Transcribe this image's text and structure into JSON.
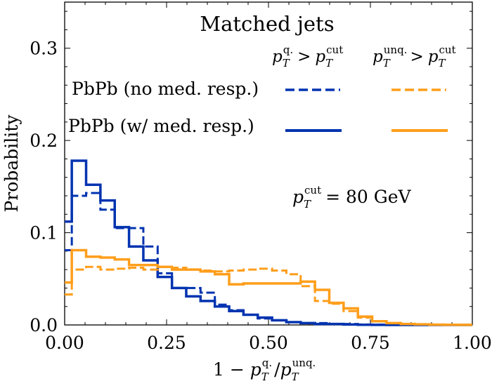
{
  "chart_data": {
    "type": "line",
    "style": "step-histogram",
    "title": "Matched jets",
    "xlabel": "1 − p_T^q. / p_T^unq.",
    "ylabel": "Probability",
    "xlim": [
      0.0,
      1.0
    ],
    "ylim": [
      0.0,
      0.35
    ],
    "x_ticks": [
      0.0,
      0.25,
      0.5,
      0.75,
      1.0
    ],
    "x_tick_labels": [
      "0.00",
      "0.25",
      "0.50",
      "0.75",
      "1.00"
    ],
    "y_ticks": [
      0.0,
      0.1,
      0.2,
      0.3
    ],
    "y_tick_labels": [
      "0.0",
      "0.1",
      "0.2",
      "0.3"
    ],
    "annotation": "p_T^cut = 80 GeV",
    "legend": {
      "position": "top-right",
      "column_headers": [
        "p_T^q. > p_T^cut",
        "p_T^unq. > p_T^cut"
      ],
      "row_labels": [
        "PbPb (no med. resp.)",
        "PbPb (w/ med. resp.)"
      ]
    },
    "bin_edges": [
      0.0,
      0.0175,
      0.0526,
      0.0877,
      0.1228,
      0.1579,
      0.193,
      0.2281,
      0.2632,
      0.2982,
      0.3333,
      0.3684,
      0.4035,
      0.4386,
      0.4737,
      0.5088,
      0.5439,
      0.5789,
      0.614,
      0.6491,
      0.6842,
      0.7193,
      0.7544,
      0.7895,
      0.8246,
      0.8596,
      0.8947,
      0.9298,
      0.9649,
      1.0
    ],
    "series": [
      {
        "name": "PbPb (no med. resp.), p_T^q. > p_T^cut",
        "color": "#0033b0",
        "dashed": true,
        "values": [
          0.081,
          0.14,
          0.143,
          0.125,
          0.105,
          0.105,
          0.085,
          0.056,
          0.04,
          0.04,
          0.035,
          0.022,
          0.016,
          0.011,
          0.007,
          0.005,
          0.003,
          0.002,
          0.002,
          0.001,
          0.001,
          0.0005,
          0.0003,
          0.0002,
          0.0001,
          0.0001,
          0.0,
          0.0,
          0.0
        ]
      },
      {
        "name": "PbPb (w/ med. resp.), p_T^q. > p_T^cut",
        "color": "#0033b0",
        "dashed": false,
        "values": [
          0.112,
          0.178,
          0.152,
          0.135,
          0.106,
          0.085,
          0.07,
          0.052,
          0.04,
          0.031,
          0.026,
          0.02,
          0.015,
          0.011,
          0.008,
          0.005,
          0.003,
          0.002,
          0.001,
          0.001,
          0.0005,
          0.0002,
          0.0001,
          0.0,
          0.0,
          0.0,
          0.0,
          0.0,
          0.0
        ]
      },
      {
        "name": "PbPb (no med. resp.), p_T^unq. > p_T^cut",
        "color": "#ff9e1b",
        "dashed": true,
        "values": [
          0.033,
          0.06,
          0.063,
          0.06,
          0.061,
          0.062,
          0.06,
          0.063,
          0.062,
          0.06,
          0.059,
          0.058,
          0.059,
          0.06,
          0.061,
          0.059,
          0.055,
          0.042,
          0.026,
          0.023,
          0.015,
          0.008,
          0.004,
          0.002,
          0.001,
          0.0008,
          0.0005,
          0.0003,
          0.0002
        ]
      },
      {
        "name": "PbPb (w/ med. resp.), p_T^unq. > p_T^cut",
        "color": "#ff9e1b",
        "dashed": false,
        "values": [
          0.046,
          0.081,
          0.074,
          0.073,
          0.071,
          0.065,
          0.065,
          0.063,
          0.06,
          0.06,
          0.058,
          0.055,
          0.044,
          0.045,
          0.045,
          0.045,
          0.045,
          0.047,
          0.038,
          0.024,
          0.018,
          0.009,
          0.004,
          0.002,
          0.001,
          0.0007,
          0.0003,
          0.0002,
          0.0001
        ]
      }
    ]
  }
}
